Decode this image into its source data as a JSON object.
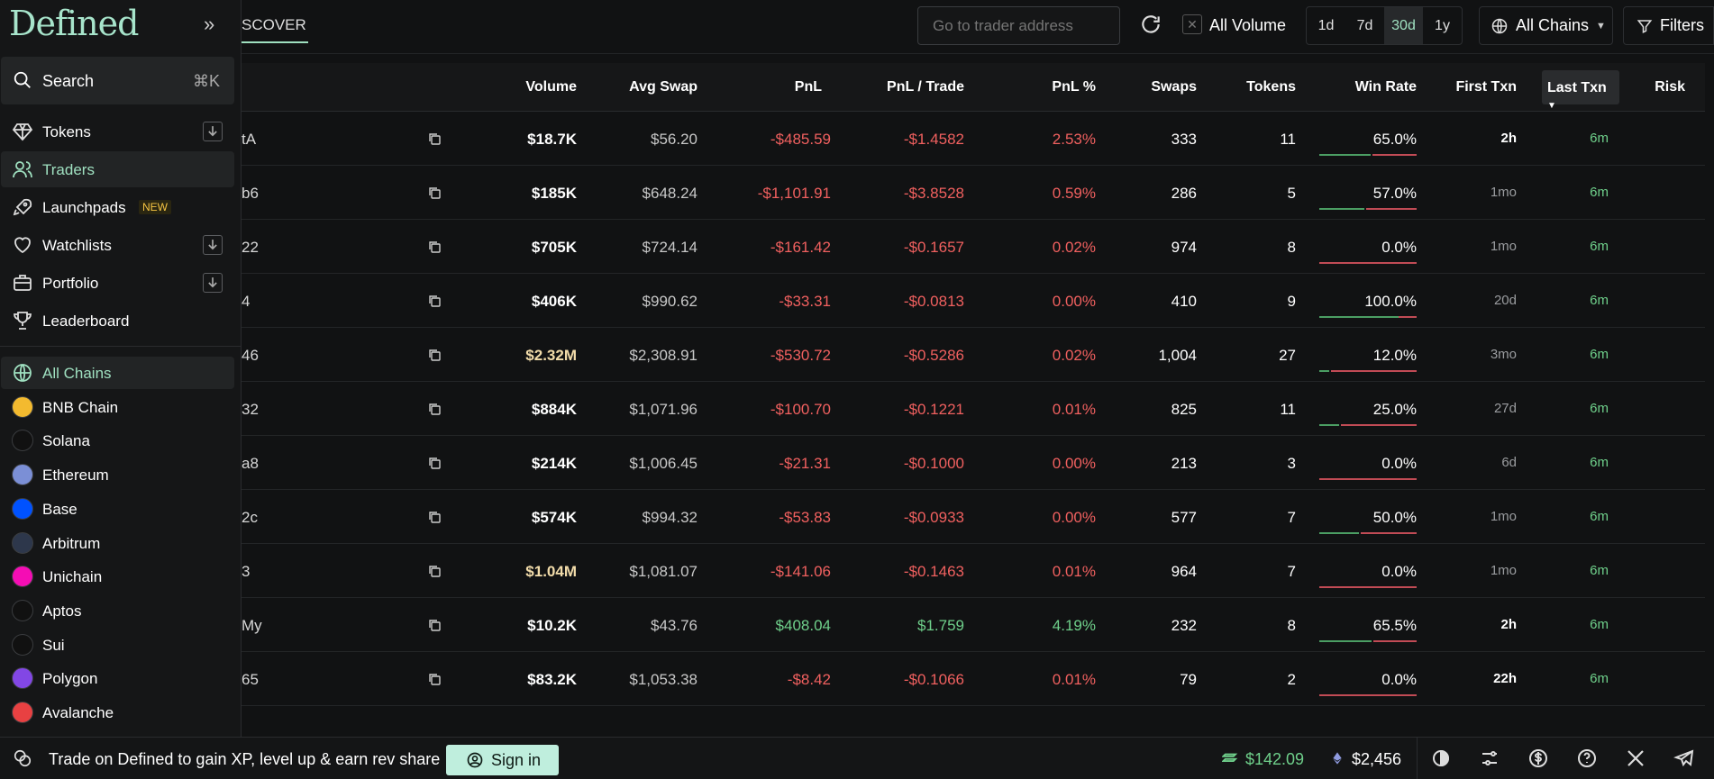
{
  "sidebar": {
    "logo": "Defined",
    "search_label": "Search",
    "search_shortcut": "⌘K",
    "nav": [
      {
        "label": "Tokens",
        "icon": "diamond-icon"
      },
      {
        "label": "Traders",
        "icon": "users-icon"
      },
      {
        "label": "Launchpads",
        "icon": "rocket-icon",
        "badge": "NEW"
      },
      {
        "label": "Watchlists",
        "icon": "heart-icon"
      },
      {
        "label": "Portfolio",
        "icon": "briefcase-icon"
      },
      {
        "label": "Leaderboard",
        "icon": "trophy-icon"
      }
    ],
    "chains": [
      {
        "label": "All Chains",
        "color": "#222425"
      },
      {
        "label": "BNB Chain",
        "color": "#f3ba2f"
      },
      {
        "label": "Solana",
        "color": "#111111"
      },
      {
        "label": "Ethereum",
        "color": "#7b8fd6"
      },
      {
        "label": "Base",
        "color": "#0052ff"
      },
      {
        "label": "Arbitrum",
        "color": "#2d374b"
      },
      {
        "label": "Unichain",
        "color": "#f50db4"
      },
      {
        "label": "Aptos",
        "color": "#111111"
      },
      {
        "label": "Sui",
        "color": "#111111"
      },
      {
        "label": "Polygon",
        "color": "#8247e5"
      },
      {
        "label": "Avalanche",
        "color": "#e84142"
      }
    ]
  },
  "topbar": {
    "tab": "SCOVER",
    "search_placeholder": "Go to trader address",
    "all_volume": "All Volume",
    "periods": [
      "1d",
      "7d",
      "30d",
      "1y"
    ],
    "active_period": "30d",
    "chains_label": "All Chains",
    "filters_label": "Filters"
  },
  "table": {
    "headers": {
      "volume": "Volume",
      "avg_swap": "Avg Swap",
      "pnl": "PnL",
      "pnl_trade": "PnL / Trade",
      "pnl_pct": "PnL %",
      "swaps": "Swaps",
      "tokens": "Tokens",
      "win_rate": "Win Rate",
      "first_txn": "First Txn",
      "last_txn": "Last Txn",
      "risk": "Risk"
    },
    "rows": [
      {
        "addr": "tA",
        "volume": "$18.7K",
        "gold": false,
        "avg": "$56.20",
        "pnl": "-$485.59",
        "pnl_trade": "-$1.4582",
        "pnl_pct": "2.53%",
        "swaps": "333",
        "tokens": "11",
        "win_rate": "65.0%",
        "win": 0.65,
        "first": "2h",
        "first_bright": true,
        "last": "6m",
        "positive": false
      },
      {
        "addr": "b6",
        "volume": "$185K",
        "gold": false,
        "avg": "$648.24",
        "pnl": "-$1,101.91",
        "pnl_trade": "-$3.8528",
        "pnl_pct": "0.59%",
        "swaps": "286",
        "tokens": "5",
        "win_rate": "57.0%",
        "win": 0.57,
        "first": "1mo",
        "first_bright": false,
        "last": "6m",
        "positive": false
      },
      {
        "addr": "22",
        "volume": "$705K",
        "gold": false,
        "avg": "$724.14",
        "pnl": "-$161.42",
        "pnl_trade": "-$0.1657",
        "pnl_pct": "0.02%",
        "swaps": "974",
        "tokens": "8",
        "win_rate": "0.0%",
        "win": 0.0,
        "first": "1mo",
        "first_bright": false,
        "last": "6m",
        "positive": false
      },
      {
        "addr": "4",
        "volume": "$406K",
        "gold": false,
        "avg": "$990.62",
        "pnl": "-$33.31",
        "pnl_trade": "-$0.0813",
        "pnl_pct": "0.00%",
        "swaps": "410",
        "tokens": "9",
        "win_rate": "100.0%",
        "win": 1.0,
        "first": "20d",
        "first_bright": false,
        "last": "6m",
        "positive": false
      },
      {
        "addr": "46",
        "volume": "$2.32M",
        "gold": true,
        "avg": "$2,308.91",
        "pnl": "-$530.72",
        "pnl_trade": "-$0.5286",
        "pnl_pct": "0.02%",
        "swaps": "1,004",
        "tokens": "27",
        "win_rate": "12.0%",
        "win": 0.12,
        "first": "3mo",
        "first_bright": false,
        "last": "6m",
        "positive": false
      },
      {
        "addr": "32",
        "volume": "$884K",
        "gold": false,
        "avg": "$1,071.96",
        "pnl": "-$100.70",
        "pnl_trade": "-$0.1221",
        "pnl_pct": "0.01%",
        "swaps": "825",
        "tokens": "11",
        "win_rate": "25.0%",
        "win": 0.25,
        "first": "27d",
        "first_bright": false,
        "last": "6m",
        "positive": false
      },
      {
        "addr": "a8",
        "volume": "$214K",
        "gold": false,
        "avg": "$1,006.45",
        "pnl": "-$21.31",
        "pnl_trade": "-$0.1000",
        "pnl_pct": "0.00%",
        "swaps": "213",
        "tokens": "3",
        "win_rate": "0.0%",
        "win": 0.0,
        "first": "6d",
        "first_bright": false,
        "last": "6m",
        "positive": false
      },
      {
        "addr": "2c",
        "volume": "$574K",
        "gold": false,
        "avg": "$994.32",
        "pnl": "-$53.83",
        "pnl_trade": "-$0.0933",
        "pnl_pct": "0.00%",
        "swaps": "577",
        "tokens": "7",
        "win_rate": "50.0%",
        "win": 0.5,
        "first": "1mo",
        "first_bright": false,
        "last": "6m",
        "positive": false
      },
      {
        "addr": "3",
        "volume": "$1.04M",
        "gold": true,
        "avg": "$1,081.07",
        "pnl": "-$141.06",
        "pnl_trade": "-$0.1463",
        "pnl_pct": "0.01%",
        "swaps": "964",
        "tokens": "7",
        "win_rate": "0.0%",
        "win": 0.0,
        "first": "1mo",
        "first_bright": false,
        "last": "6m",
        "positive": false
      },
      {
        "addr": "My",
        "volume": "$10.2K",
        "gold": false,
        "avg": "$43.76",
        "pnl": "$408.04",
        "pnl_trade": "$1.759",
        "pnl_pct": "4.19%",
        "swaps": "232",
        "tokens": "8",
        "win_rate": "65.5%",
        "win": 0.655,
        "first": "2h",
        "first_bright": true,
        "last": "6m",
        "positive": true
      },
      {
        "addr": "65",
        "volume": "$83.2K",
        "gold": false,
        "avg": "$1,053.38",
        "pnl": "-$8.42",
        "pnl_trade": "-$0.1066",
        "pnl_pct": "0.01%",
        "swaps": "79",
        "tokens": "2",
        "win_rate": "0.0%",
        "win": 0.0,
        "first": "22h",
        "first_bright": true,
        "last": "6m",
        "positive": false
      }
    ]
  },
  "bottombar": {
    "promo": "Trade on Defined to gain XP, level up & earn rev share",
    "signin": "Sign in",
    "sol_price": "$142.09",
    "eth_price": "$2,456"
  },
  "colors": {
    "accent": "#9fe0c0",
    "negative": "#f0605f",
    "positive": "#6fd08b",
    "gold": "#f2dcaa"
  }
}
